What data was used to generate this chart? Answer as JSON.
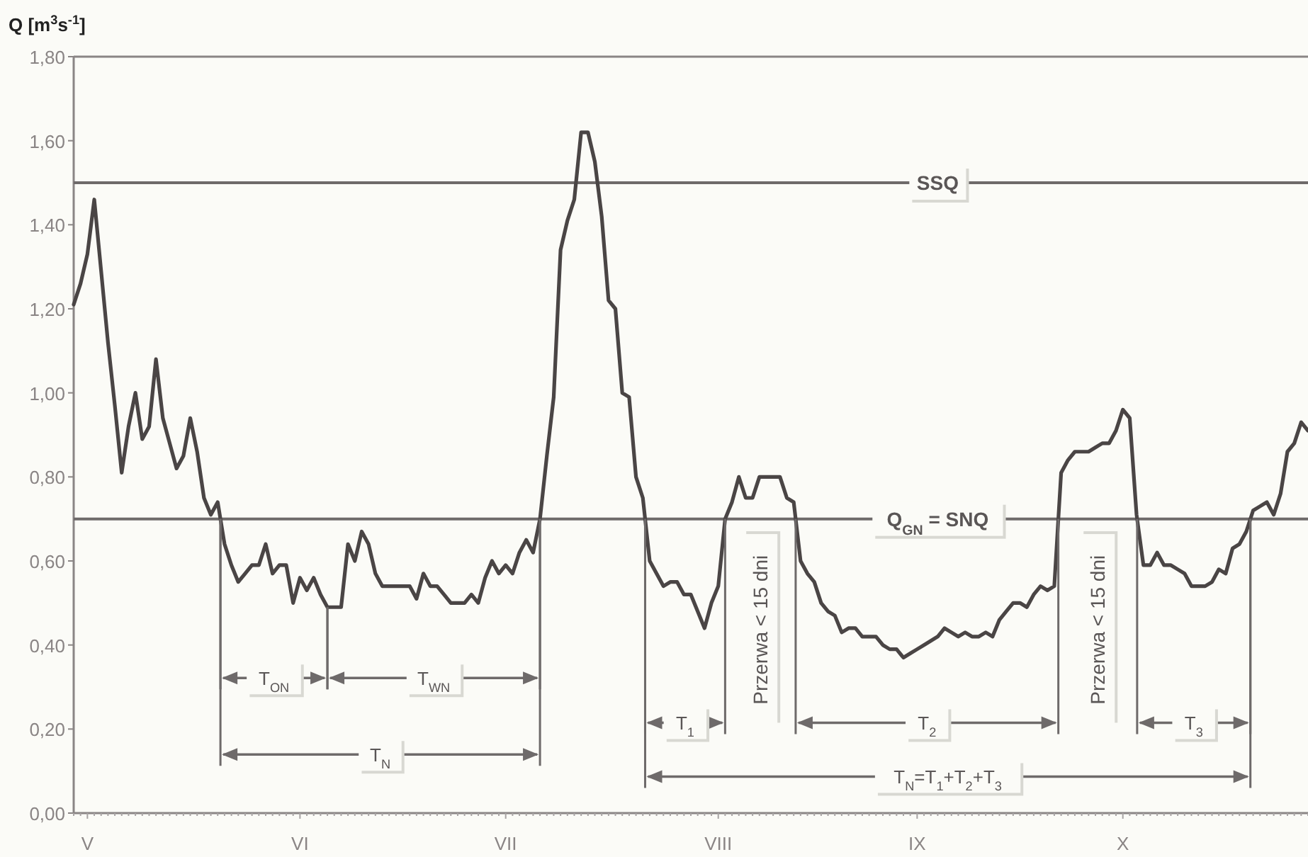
{
  "chart_data": {
    "type": "line",
    "ylabel": "Q [m$^{3}$s$^{-1}$]",
    "categories": [
      null,
      null,
      "V",
      null,
      null,
      null,
      null,
      null,
      null,
      null,
      null,
      null,
      null,
      null,
      null,
      null,
      null,
      null,
      null,
      null,
      null,
      null,
      null,
      null,
      null,
      null,
      null,
      null,
      null,
      null,
      null,
      null,
      null,
      "VI",
      null,
      null,
      null,
      null,
      null,
      null,
      null,
      null,
      null,
      null,
      null,
      null,
      null,
      null,
      null,
      null,
      null,
      null,
      null,
      null,
      null,
      null,
      null,
      null,
      null,
      null,
      null,
      null,
      null,
      "VII",
      null,
      null,
      null,
      null,
      null,
      null,
      null,
      null,
      null,
      null,
      null,
      null,
      null,
      null,
      null,
      null,
      null,
      null,
      null,
      null,
      null,
      null,
      null,
      null,
      null,
      null,
      null,
      null,
      null,
      null,
      "VIII",
      null,
      null,
      null,
      null,
      null,
      null,
      null,
      null,
      null,
      null,
      null,
      null,
      null,
      null,
      null,
      null,
      null,
      null,
      null,
      null,
      null,
      null,
      null,
      null,
      null,
      null,
      null,
      null,
      "IX",
      null,
      null,
      null,
      null,
      null,
      null,
      null,
      null,
      null,
      null,
      null,
      null,
      null,
      null,
      null,
      null,
      null,
      null,
      null,
      null,
      null,
      null,
      null,
      null,
      null,
      null,
      null,
      null,
      null,
      "X",
      null,
      null,
      null,
      null,
      null,
      null,
      null,
      null,
      null,
      null,
      null,
      null,
      null,
      null,
      null,
      null,
      null,
      null,
      null,
      null,
      null,
      null,
      null,
      null,
      null,
      null,
      null
    ],
    "ylim": [
      0,
      1.8
    ],
    "yticks": [
      {
        "value": 0,
        "label": "0,00"
      },
      {
        "value": 0.2,
        "label": "0,20"
      },
      {
        "value": 0.4,
        "label": "0,40"
      },
      {
        "value": 0.6,
        "label": "0,60"
      },
      {
        "value": 0.8,
        "label": "0,80"
      },
      {
        "value": 1.0,
        "label": "1,00"
      },
      {
        "value": 1.2,
        "label": "1,20"
      },
      {
        "value": 1.4,
        "label": "1,40"
      },
      {
        "value": 1.6,
        "label": "1,60"
      },
      {
        "value": 1.8,
        "label": "1,80"
      }
    ],
    "series": [
      {
        "color": "#4a4545",
        "values": [
          1.21,
          1.26,
          1.33,
          1.46,
          1.29,
          1.12,
          0.97,
          0.81,
          0.92,
          1.0,
          0.89,
          0.92,
          1.08,
          0.94,
          0.88,
          0.82,
          0.85,
          0.94,
          0.86,
          0.75,
          0.71,
          0.74,
          0.64,
          0.59,
          0.55,
          0.57,
          0.59,
          0.59,
          0.64,
          0.57,
          0.59,
          0.59,
          0.5,
          0.56,
          0.53,
          0.56,
          0.52,
          0.49,
          0.49,
          0.49,
          0.64,
          0.6,
          0.67,
          0.64,
          0.57,
          0.54,
          0.54,
          0.54,
          0.54,
          0.54,
          0.51,
          0.57,
          0.54,
          0.54,
          0.52,
          0.5,
          0.5,
          0.5,
          0.52,
          0.5,
          0.56,
          0.6,
          0.57,
          0.59,
          0.57,
          0.62,
          0.65,
          0.62,
          0.7,
          0.85,
          0.99,
          1.34,
          1.41,
          1.46,
          1.62,
          1.62,
          1.55,
          1.42,
          1.22,
          1.2,
          1.0,
          0.99,
          0.8,
          0.75,
          0.6,
          0.57,
          0.54,
          0.55,
          0.55,
          0.52,
          0.52,
          0.48,
          0.44,
          0.5,
          0.54,
          0.7,
          0.74,
          0.8,
          0.75,
          0.75,
          0.8,
          0.8,
          0.8,
          0.8,
          0.75,
          0.74,
          0.6,
          0.57,
          0.55,
          0.5,
          0.48,
          0.47,
          0.43,
          0.44,
          0.44,
          0.42,
          0.42,
          0.42,
          0.4,
          0.39,
          0.39,
          0.37,
          0.38,
          0.39,
          0.4,
          0.41,
          0.42,
          0.44,
          0.43,
          0.42,
          0.43,
          0.42,
          0.42,
          0.43,
          0.42,
          0.46,
          0.48,
          0.5,
          0.5,
          0.49,
          0.52,
          0.54,
          0.53,
          0.54,
          0.81,
          0.84,
          0.86,
          0.86,
          0.86,
          0.87,
          0.88,
          0.88,
          0.91,
          0.96,
          0.94,
          0.71,
          0.59,
          0.59,
          0.62,
          0.59,
          0.59,
          0.58,
          0.57,
          0.54,
          0.54,
          0.54,
          0.55,
          0.58,
          0.57,
          0.63,
          0.64,
          0.67,
          0.72,
          0.73,
          0.74,
          0.71,
          0.76,
          0.86,
          0.88,
          0.93,
          0.91
        ]
      }
    ],
    "ref_lines": [
      {
        "axis": "y",
        "value": 1.5,
        "label": "SSQ"
      },
      {
        "axis": "y",
        "value": 0.7,
        "label": "Q$_{GN}$ = SNQ"
      }
    ],
    "annotations": [
      "T$_{ON}$",
      "T$_{WN}$",
      "T$_{N}$",
      "T$_{1}$",
      "Przerwa < 15 dni",
      "T$_{2}$",
      "Przerwa < 15 dni",
      "T$_{3}$",
      "T$_{N}$=T$_{1}$+T$_{2}$+T$_{3}$"
    ]
  }
}
